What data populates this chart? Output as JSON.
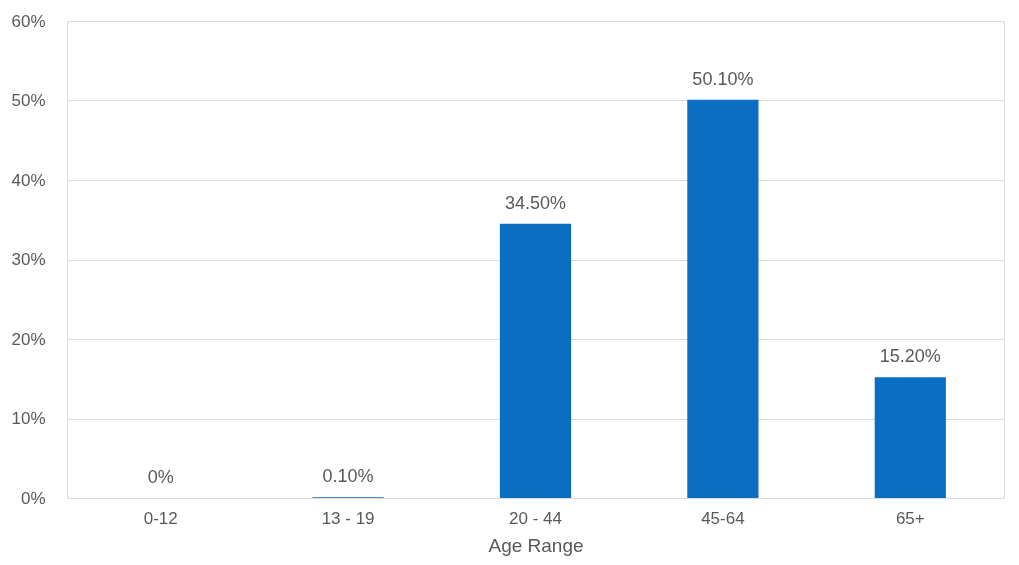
{
  "chart_data": {
    "type": "bar",
    "xlabel": "Age Range",
    "categories": [
      "0-12",
      "13 - 19",
      "20 - 44",
      "45-64",
      "65+"
    ],
    "values": [
      0,
      0.1,
      34.5,
      50.1,
      15.2
    ],
    "value_labels": [
      "0%",
      "0.10%",
      "34.50%",
      "50.10%",
      "15.20%"
    ],
    "color": "#0a6fc2",
    "ylim": [
      0,
      60
    ],
    "yticks": [
      {
        "value": 0,
        "label": "0%"
      },
      {
        "value": 10,
        "label": "10%"
      },
      {
        "value": 20,
        "label": "20%"
      },
      {
        "value": 30,
        "label": "30%"
      },
      {
        "value": 40,
        "label": "40%"
      },
      {
        "value": 50,
        "label": "50%"
      },
      {
        "value": 60,
        "label": "60%"
      }
    ],
    "grid": "y"
  }
}
